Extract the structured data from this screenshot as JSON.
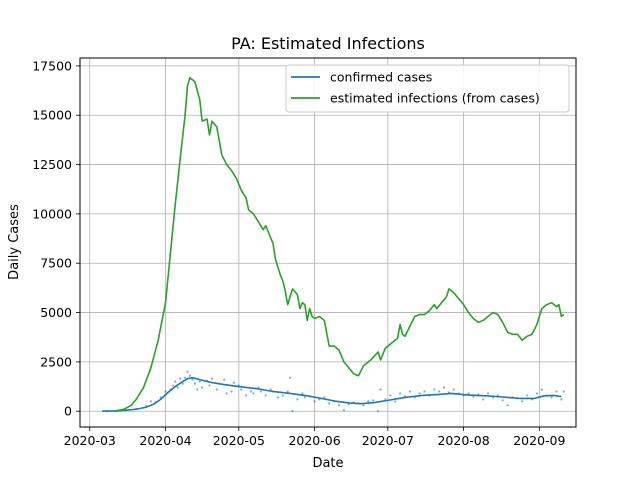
{
  "chart_data": {
    "type": "line",
    "title": "PA: Estimated Infections",
    "xlabel": "Date",
    "ylabel": "Daily Cases",
    "xlim": [
      "2020-02-26",
      "2020-09-16"
    ],
    "ylim": [
      -800,
      17900
    ],
    "grid": true,
    "legend_position": "top-right",
    "x_ticks": [
      "2020-03-01",
      "2020-04-01",
      "2020-05-01",
      "2020-06-01",
      "2020-07-01",
      "2020-08-01",
      "2020-09-01"
    ],
    "x_tick_labels": [
      "2020-03",
      "2020-04",
      "2020-05",
      "2020-06",
      "2020-07",
      "2020-08",
      "2020-09"
    ],
    "y_ticks": [
      0,
      2500,
      5000,
      7500,
      10000,
      12500,
      15000,
      17500
    ],
    "y_tick_labels": [
      "0",
      "2500",
      "5000",
      "7500",
      "10000",
      "12500",
      "15000",
      "17500"
    ],
    "series": [
      {
        "name": "confirmed cases",
        "color": "#1f77b4",
        "points": [
          [
            "2020-03-06",
            0
          ],
          [
            "2020-03-13",
            20
          ],
          [
            "2020-03-20",
            100
          ],
          [
            "2020-03-24",
            200
          ],
          [
            "2020-03-27",
            350
          ],
          [
            "2020-03-30",
            600
          ],
          [
            "2020-04-02",
            950
          ],
          [
            "2020-04-05",
            1250
          ],
          [
            "2020-04-08",
            1500
          ],
          [
            "2020-04-10",
            1650
          ],
          [
            "2020-04-12",
            1700
          ],
          [
            "2020-04-15",
            1600
          ],
          [
            "2020-04-20",
            1450
          ],
          [
            "2020-04-25",
            1350
          ],
          [
            "2020-05-01",
            1250
          ],
          [
            "2020-05-08",
            1150
          ],
          [
            "2020-05-15",
            1000
          ],
          [
            "2020-05-22",
            900
          ],
          [
            "2020-05-29",
            780
          ],
          [
            "2020-06-05",
            620
          ],
          [
            "2020-06-10",
            500
          ],
          [
            "2020-06-15",
            420
          ],
          [
            "2020-06-20",
            380
          ],
          [
            "2020-06-25",
            430
          ],
          [
            "2020-07-01",
            550
          ],
          [
            "2020-07-08",
            700
          ],
          [
            "2020-07-15",
            800
          ],
          [
            "2020-07-22",
            850
          ],
          [
            "2020-07-27",
            900
          ],
          [
            "2020-08-03",
            820
          ],
          [
            "2020-08-10",
            780
          ],
          [
            "2020-08-17",
            720
          ],
          [
            "2020-08-24",
            650
          ],
          [
            "2020-08-30",
            650
          ],
          [
            "2020-09-03",
            780
          ],
          [
            "2020-09-07",
            800
          ],
          [
            "2020-09-10",
            740
          ]
        ]
      },
      {
        "name": "estimated infections (from cases)",
        "color": "#2ca02c",
        "points": [
          [
            "2020-03-11",
            0
          ],
          [
            "2020-03-15",
            100
          ],
          [
            "2020-03-18",
            300
          ],
          [
            "2020-03-20",
            600
          ],
          [
            "2020-03-23",
            1200
          ],
          [
            "2020-03-26",
            2200
          ],
          [
            "2020-03-29",
            3600
          ],
          [
            "2020-04-01",
            5500
          ],
          [
            "2020-04-03",
            8000
          ],
          [
            "2020-04-05",
            10500
          ],
          [
            "2020-04-07",
            12800
          ],
          [
            "2020-04-09",
            15000
          ],
          [
            "2020-04-10",
            16500
          ],
          [
            "2020-04-11",
            16900
          ],
          [
            "2020-04-13",
            16700
          ],
          [
            "2020-04-15",
            15800
          ],
          [
            "2020-04-16",
            14700
          ],
          [
            "2020-04-18",
            14800
          ],
          [
            "2020-04-19",
            14000
          ],
          [
            "2020-04-20",
            14700
          ],
          [
            "2020-04-22",
            14400
          ],
          [
            "2020-04-24",
            13000
          ],
          [
            "2020-04-26",
            12500
          ],
          [
            "2020-04-28",
            12200
          ],
          [
            "2020-04-30",
            11800
          ],
          [
            "2020-05-02",
            11200
          ],
          [
            "2020-05-04",
            10800
          ],
          [
            "2020-05-05",
            10200
          ],
          [
            "2020-05-07",
            10000
          ],
          [
            "2020-05-09",
            9600
          ],
          [
            "2020-05-11",
            9200
          ],
          [
            "2020-05-12",
            9400
          ],
          [
            "2020-05-14",
            8800
          ],
          [
            "2020-05-15",
            8500
          ],
          [
            "2020-05-16",
            7700
          ],
          [
            "2020-05-18",
            6900
          ],
          [
            "2020-05-19",
            6600
          ],
          [
            "2020-05-20",
            6100
          ],
          [
            "2020-05-21",
            5400
          ],
          [
            "2020-05-22",
            5800
          ],
          [
            "2020-05-23",
            6200
          ],
          [
            "2020-05-25",
            5900
          ],
          [
            "2020-05-26",
            5200
          ],
          [
            "2020-05-27",
            5500
          ],
          [
            "2020-05-28",
            5400
          ],
          [
            "2020-05-29",
            4600
          ],
          [
            "2020-05-30",
            5200
          ],
          [
            "2020-05-31",
            4800
          ],
          [
            "2020-06-01",
            4700
          ],
          [
            "2020-06-03",
            4800
          ],
          [
            "2020-06-05",
            4600
          ],
          [
            "2020-06-07",
            3300
          ],
          [
            "2020-06-09",
            3300
          ],
          [
            "2020-06-11",
            3100
          ],
          [
            "2020-06-13",
            2500
          ],
          [
            "2020-06-15",
            2200
          ],
          [
            "2020-06-17",
            1900
          ],
          [
            "2020-06-19",
            1800
          ],
          [
            "2020-06-21",
            2300
          ],
          [
            "2020-06-24",
            2600
          ],
          [
            "2020-06-27",
            3000
          ],
          [
            "2020-06-28",
            2600
          ],
          [
            "2020-06-30",
            3200
          ],
          [
            "2020-07-03",
            3500
          ],
          [
            "2020-07-05",
            3700
          ],
          [
            "2020-07-06",
            4400
          ],
          [
            "2020-07-07",
            3900
          ],
          [
            "2020-07-08",
            3800
          ],
          [
            "2020-07-10",
            4300
          ],
          [
            "2020-07-12",
            4800
          ],
          [
            "2020-07-14",
            4900
          ],
          [
            "2020-07-16",
            4900
          ],
          [
            "2020-07-18",
            5100
          ],
          [
            "2020-07-20",
            5400
          ],
          [
            "2020-07-21",
            5200
          ],
          [
            "2020-07-23",
            5500
          ],
          [
            "2020-07-25",
            5800
          ],
          [
            "2020-07-26",
            6200
          ],
          [
            "2020-07-28",
            6000
          ],
          [
            "2020-07-30",
            5700
          ],
          [
            "2020-08-01",
            5400
          ],
          [
            "2020-08-03",
            5000
          ],
          [
            "2020-08-05",
            4700
          ],
          [
            "2020-08-07",
            4500
          ],
          [
            "2020-08-09",
            4600
          ],
          [
            "2020-08-11",
            4800
          ],
          [
            "2020-08-13",
            5000
          ],
          [
            "2020-08-15",
            4900
          ],
          [
            "2020-08-17",
            4500
          ],
          [
            "2020-08-19",
            4000
          ],
          [
            "2020-08-21",
            3900
          ],
          [
            "2020-08-23",
            3900
          ],
          [
            "2020-08-25",
            3600
          ],
          [
            "2020-08-27",
            3800
          ],
          [
            "2020-08-29",
            3900
          ],
          [
            "2020-08-31",
            4400
          ],
          [
            "2020-09-02",
            5200
          ],
          [
            "2020-09-04",
            5400
          ],
          [
            "2020-09-06",
            5500
          ],
          [
            "2020-09-08",
            5300
          ],
          [
            "2020-09-09",
            5400
          ],
          [
            "2020-09-10",
            4800
          ],
          [
            "2020-09-11",
            4900
          ]
        ]
      }
    ],
    "scatter": {
      "color": "#1f77b4",
      "points": [
        [
          "2020-03-08",
          5
        ],
        [
          "2020-03-12",
          10
        ],
        [
          "2020-03-16",
          40
        ],
        [
          "2020-03-20",
          120
        ],
        [
          "2020-03-24",
          250
        ],
        [
          "2020-03-26",
          500
        ],
        [
          "2020-03-28",
          450
        ],
        [
          "2020-03-30",
          700
        ],
        [
          "2020-04-01",
          1000
        ],
        [
          "2020-04-03",
          1100
        ],
        [
          "2020-04-04",
          1300
        ],
        [
          "2020-04-05",
          1500
        ],
        [
          "2020-04-06",
          1200
        ],
        [
          "2020-04-07",
          1650
        ],
        [
          "2020-04-08",
          1400
        ],
        [
          "2020-04-09",
          1700
        ],
        [
          "2020-04-10",
          2000
        ],
        [
          "2020-04-11",
          1800
        ],
        [
          "2020-04-12",
          1600
        ],
        [
          "2020-04-13",
          1400
        ],
        [
          "2020-04-14",
          1100
        ],
        [
          "2020-04-15",
          1500
        ],
        [
          "2020-04-16",
          1200
        ],
        [
          "2020-04-18",
          1550
        ],
        [
          "2020-04-19",
          1300
        ],
        [
          "2020-04-20",
          1650
        ],
        [
          "2020-04-22",
          1100
        ],
        [
          "2020-04-23",
          1400
        ],
        [
          "2020-04-25",
          1600
        ],
        [
          "2020-04-26",
          900
        ],
        [
          "2020-04-28",
          1000
        ],
        [
          "2020-04-29",
          1450
        ],
        [
          "2020-05-01",
          1300
        ],
        [
          "2020-05-02",
          1100
        ],
        [
          "2020-05-04",
          800
        ],
        [
          "2020-05-06",
          1000
        ],
        [
          "2020-05-07",
          900
        ],
        [
          "2020-05-09",
          1200
        ],
        [
          "2020-05-10",
          1000
        ],
        [
          "2020-05-12",
          800
        ],
        [
          "2020-05-14",
          1100
        ],
        [
          "2020-05-15",
          1000
        ],
        [
          "2020-05-17",
          700
        ],
        [
          "2020-05-19",
          800
        ],
        [
          "2020-05-21",
          1000
        ],
        [
          "2020-05-22",
          1700
        ],
        [
          "2020-05-23",
          0
        ],
        [
          "2020-05-25",
          600
        ],
        [
          "2020-05-27",
          900
        ],
        [
          "2020-05-28",
          700
        ],
        [
          "2020-05-30",
          750
        ],
        [
          "2020-06-01",
          500
        ],
        [
          "2020-06-03",
          600
        ],
        [
          "2020-06-05",
          700
        ],
        [
          "2020-06-07",
          400
        ],
        [
          "2020-06-09",
          500
        ],
        [
          "2020-06-11",
          300
        ],
        [
          "2020-06-13",
          50
        ],
        [
          "2020-06-15",
          350
        ],
        [
          "2020-06-17",
          450
        ],
        [
          "2020-06-19",
          400
        ],
        [
          "2020-06-21",
          300
        ],
        [
          "2020-06-23",
          500
        ],
        [
          "2020-06-25",
          550
        ],
        [
          "2020-06-27",
          0
        ],
        [
          "2020-06-28",
          1100
        ],
        [
          "2020-06-30",
          600
        ],
        [
          "2020-07-02",
          800
        ],
        [
          "2020-07-04",
          500
        ],
        [
          "2020-07-06",
          900
        ],
        [
          "2020-07-08",
          750
        ],
        [
          "2020-07-10",
          1000
        ],
        [
          "2020-07-12",
          700
        ],
        [
          "2020-07-14",
          900
        ],
        [
          "2020-07-16",
          1000
        ],
        [
          "2020-07-18",
          800
        ],
        [
          "2020-07-20",
          1100
        ],
        [
          "2020-07-22",
          1000
        ],
        [
          "2020-07-24",
          1200
        ],
        [
          "2020-07-26",
          950
        ],
        [
          "2020-07-28",
          1100
        ],
        [
          "2020-07-30",
          900
        ],
        [
          "2020-08-01",
          800
        ],
        [
          "2020-08-03",
          900
        ],
        [
          "2020-08-05",
          750
        ],
        [
          "2020-08-07",
          850
        ],
        [
          "2020-08-09",
          600
        ],
        [
          "2020-08-11",
          900
        ],
        [
          "2020-08-13",
          700
        ],
        [
          "2020-08-15",
          800
        ],
        [
          "2020-08-17",
          550
        ],
        [
          "2020-08-19",
          300
        ],
        [
          "2020-08-21",
          700
        ],
        [
          "2020-08-23",
          650
        ],
        [
          "2020-08-25",
          500
        ],
        [
          "2020-08-27",
          800
        ],
        [
          "2020-08-29",
          600
        ],
        [
          "2020-08-31",
          900
        ],
        [
          "2020-09-02",
          1100
        ],
        [
          "2020-09-04",
          800
        ],
        [
          "2020-09-06",
          700
        ],
        [
          "2020-09-08",
          1000
        ],
        [
          "2020-09-10",
          600
        ],
        [
          "2020-09-11",
          1000
        ]
      ]
    }
  }
}
